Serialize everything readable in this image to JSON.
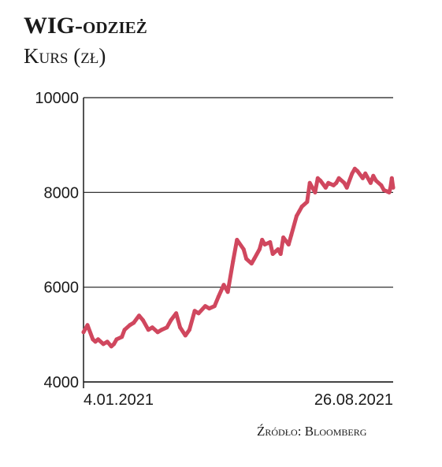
{
  "header": {
    "title_main": "WIG",
    "title_suffix": "-odzież",
    "subtitle": "Kurs (zł)"
  },
  "footer": {
    "source": "Źródło: Bloomberg"
  },
  "chart_data": {
    "type": "line",
    "title": "WIG-odzież",
    "subtitle": "Kurs (zł)",
    "xlabel": "",
    "ylabel": "",
    "x_tick_labels": [
      "4.01.2021",
      "26.08.2021"
    ],
    "x_range": [
      "2021-01-04",
      "2021-08-26"
    ],
    "ylim": [
      4000,
      10000
    ],
    "yticks": [
      4000,
      6000,
      8000,
      10000
    ],
    "grid": "horizontal",
    "line_color": "#d0475e",
    "series": [
      {
        "x": [
          "2021-01-04",
          "2021-01-07",
          "2021-01-11",
          "2021-01-13",
          "2021-01-15",
          "2021-01-19",
          "2021-01-22",
          "2021-01-25",
          "2021-01-27",
          "2021-01-29",
          "2021-02-02",
          "2021-02-04",
          "2021-02-08",
          "2021-02-11",
          "2021-02-15",
          "2021-02-18",
          "2021-02-22",
          "2021-02-25",
          "2021-03-01",
          "2021-03-04",
          "2021-03-08",
          "2021-03-11",
          "2021-03-15",
          "2021-03-18",
          "2021-03-22",
          "2021-03-25",
          "2021-03-29",
          "2021-04-01",
          "2021-04-06",
          "2021-04-09",
          "2021-04-13",
          "2021-04-16",
          "2021-04-20",
          "2021-04-23",
          "2021-04-27",
          "2021-04-30",
          "2021-05-05",
          "2021-05-07",
          "2021-05-11",
          "2021-05-13",
          "2021-05-17",
          "2021-05-19",
          "2021-05-21",
          "2021-05-25",
          "2021-05-27",
          "2021-05-31",
          "2021-06-02",
          "2021-06-04",
          "2021-06-08",
          "2021-06-10",
          "2021-06-14",
          "2021-06-16",
          "2021-06-18",
          "2021-06-22",
          "2021-06-24",
          "2021-06-28",
          "2021-06-30",
          "2021-07-02",
          "2021-07-06",
          "2021-07-08",
          "2021-07-12",
          "2021-07-14",
          "2021-07-16",
          "2021-07-20",
          "2021-07-22",
          "2021-07-26",
          "2021-07-28",
          "2021-07-30",
          "2021-08-03",
          "2021-08-05",
          "2021-08-09",
          "2021-08-11",
          "2021-08-13",
          "2021-08-17",
          "2021-08-19",
          "2021-08-23",
          "2021-08-24",
          "2021-08-25",
          "2021-08-26"
        ],
        "values": [
          5050,
          5200,
          4900,
          4850,
          4900,
          4800,
          4850,
          4750,
          4800,
          4900,
          4950,
          5100,
          5200,
          5250,
          5400,
          5300,
          5100,
          5150,
          5050,
          5100,
          5150,
          5300,
          5450,
          5150,
          4980,
          5100,
          5500,
          5450,
          5600,
          5550,
          5600,
          5800,
          6050,
          5900,
          6550,
          7000,
          6800,
          6600,
          6500,
          6600,
          6800,
          7000,
          6900,
          6950,
          6700,
          6800,
          6700,
          7050,
          6900,
          7100,
          7500,
          7600,
          7700,
          7800,
          8200,
          8000,
          8300,
          8250,
          8100,
          8200,
          8150,
          8200,
          8300,
          8200,
          8100,
          8400,
          8500,
          8450,
          8300,
          8400,
          8200,
          8350,
          8250,
          8150,
          8050,
          8000,
          8100,
          8300,
          8100
        ]
      }
    ]
  }
}
